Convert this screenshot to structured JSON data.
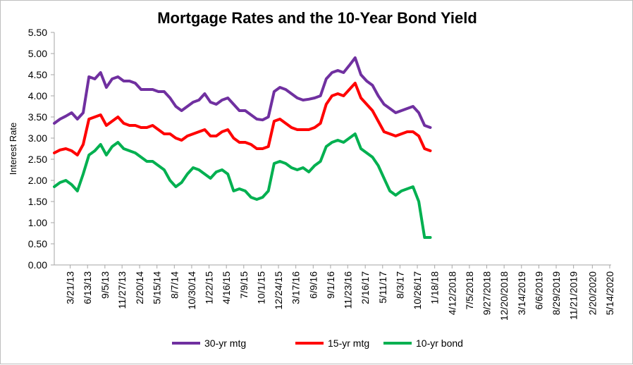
{
  "chart_data": {
    "type": "line",
    "title": "Mortgage Rates and the 10-Year Bond Yield",
    "ylabel": "Interest Rate",
    "xlabel": "",
    "ylim": [
      0,
      5.5
    ],
    "yticks": [
      "0.00",
      "0.50",
      "1.00",
      "1.50",
      "2.00",
      "2.50",
      "3.00",
      "3.50",
      "4.00",
      "4.50",
      "5.00",
      "5.50"
    ],
    "grid": false,
    "legend": "bottom",
    "x_ticks": [
      "3/21/13",
      "6/13/13",
      "9/5/13",
      "11/27/13",
      "2/20/14",
      "5/15/14",
      "8/7/14",
      "10/30/14",
      "1/22/15",
      "4/16/15",
      "7/9/15",
      "10/1/15",
      "12/24/15",
      "3/17/16",
      "6/9/16",
      "9/1/16",
      "11/23/16",
      "2/16/17",
      "5/11/17",
      "8/3/17",
      "10/26/17",
      "1/18/18",
      "4/12/2018",
      "7/5/2018",
      "9/27/2018",
      "12/20/2018",
      "3/14/2019",
      "6/6/2019",
      "8/29/2019",
      "11/21/2019",
      "2/20/2020",
      "5/14/2020"
    ],
    "x_start": "1/3/13",
    "x_end": "5/21/2020",
    "sample_interval_days": 28,
    "series": [
      {
        "name": "30-yr mtg",
        "color": "#7030a0",
        "values": [
          3.35,
          3.45,
          3.52,
          3.6,
          3.45,
          3.6,
          4.45,
          4.4,
          4.55,
          4.2,
          4.4,
          4.45,
          4.35,
          4.35,
          4.3,
          4.15,
          4.15,
          4.15,
          4.1,
          4.1,
          3.95,
          3.75,
          3.65,
          3.75,
          3.85,
          3.9,
          4.05,
          3.85,
          3.8,
          3.9,
          3.95,
          3.8,
          3.65,
          3.65,
          3.55,
          3.45,
          3.43,
          3.5,
          4.1,
          4.2,
          4.15,
          4.05,
          3.95,
          3.9,
          3.92,
          3.95,
          4.0,
          4.4,
          4.55,
          4.6,
          4.55,
          4.72,
          4.9,
          4.5,
          4.35,
          4.25,
          4.0,
          3.8,
          3.7,
          3.6,
          3.65,
          3.7,
          3.75,
          3.6,
          3.3,
          3.25
        ]
      },
      {
        "name": "15-yr mtg",
        "color": "#ff0000",
        "values": [
          2.65,
          2.72,
          2.75,
          2.7,
          2.6,
          2.85,
          3.45,
          3.5,
          3.55,
          3.3,
          3.4,
          3.5,
          3.35,
          3.3,
          3.3,
          3.25,
          3.25,
          3.3,
          3.2,
          3.1,
          3.1,
          3.0,
          2.95,
          3.05,
          3.1,
          3.15,
          3.2,
          3.05,
          3.05,
          3.15,
          3.2,
          3.0,
          2.9,
          2.9,
          2.85,
          2.75,
          2.75,
          2.8,
          3.4,
          3.45,
          3.35,
          3.25,
          3.2,
          3.2,
          3.2,
          3.25,
          3.35,
          3.8,
          4.0,
          4.05,
          4.0,
          4.15,
          4.3,
          3.95,
          3.8,
          3.65,
          3.4,
          3.15,
          3.1,
          3.05,
          3.1,
          3.15,
          3.15,
          3.05,
          2.75,
          2.7
        ]
      },
      {
        "name": "10-yr bond",
        "color": "#00b050",
        "values": [
          1.85,
          1.95,
          2.0,
          1.9,
          1.75,
          2.15,
          2.6,
          2.7,
          2.85,
          2.6,
          2.8,
          2.9,
          2.75,
          2.7,
          2.65,
          2.55,
          2.45,
          2.45,
          2.35,
          2.25,
          2.0,
          1.85,
          1.95,
          2.15,
          2.3,
          2.25,
          2.15,
          2.05,
          2.2,
          2.25,
          2.15,
          1.75,
          1.8,
          1.75,
          1.6,
          1.55,
          1.6,
          1.75,
          2.4,
          2.45,
          2.4,
          2.3,
          2.25,
          2.3,
          2.2,
          2.35,
          2.45,
          2.8,
          2.9,
          2.95,
          2.9,
          3.0,
          3.1,
          2.75,
          2.65,
          2.55,
          2.35,
          2.05,
          1.75,
          1.65,
          1.75,
          1.8,
          1.85,
          1.5,
          0.65,
          0.65
        ]
      }
    ]
  }
}
